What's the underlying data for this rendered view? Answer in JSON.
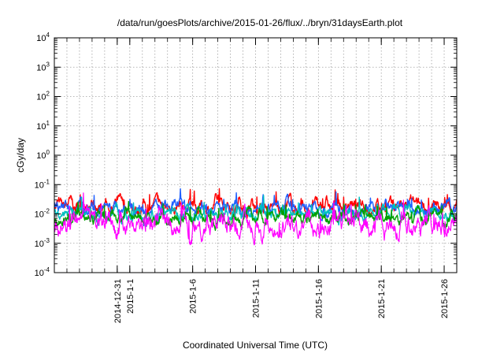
{
  "chart_data": {
    "type": "line",
    "title": "/data/run/goesPlots/archive/2015-01-26/flux/../bryn/31daysEarth.plot",
    "xlabel": "Coordinated Universal Time (UTC)",
    "ylabel": "cGy/day",
    "y_scale": "log",
    "ylim": [
      0.0001,
      10000
    ],
    "y_ticks": [
      {
        "base": "10",
        "exp": "-4"
      },
      {
        "base": "10",
        "exp": "-3"
      },
      {
        "base": "10",
        "exp": "-2"
      },
      {
        "base": "10",
        "exp": "-1"
      },
      {
        "base": "10",
        "exp": "0"
      },
      {
        "base": "10",
        "exp": "1"
      },
      {
        "base": "10",
        "exp": "2"
      },
      {
        "base": "10",
        "exp": "3"
      },
      {
        "base": "10",
        "exp": "4"
      }
    ],
    "xlim": [
      "2014-12-26",
      "2015-01-27"
    ],
    "x_ticks": [
      "2014-12-31",
      "2015-1-1",
      "2015-1-6",
      "2015-1-11",
      "2015-1-16",
      "2015-1-21",
      "2015-1-26"
    ],
    "grid": true,
    "series": [
      {
        "color": "#ff0000",
        "baseline": 0.018,
        "spread": 0.28,
        "x_start": "2014-12-26",
        "x_end": "2015-01-27"
      },
      {
        "color": "#1f5fff",
        "baseline": 0.016,
        "spread": 0.25,
        "x_start": "2014-12-26",
        "x_end": "2015-01-27"
      },
      {
        "color": "#00c0c0",
        "baseline": 0.01,
        "spread": 0.25,
        "x_start": "2014-12-26",
        "x_end": "2015-01-27"
      },
      {
        "color": "#00a000",
        "baseline": 0.008,
        "spread": 0.25,
        "x_start": "2014-12-26",
        "x_end": "2015-01-27"
      },
      {
        "color": "#ff00ff",
        "baseline": 0.0045,
        "spread": 0.45,
        "x_start": "2014-12-26",
        "x_end": "2015-01-27"
      }
    ]
  }
}
